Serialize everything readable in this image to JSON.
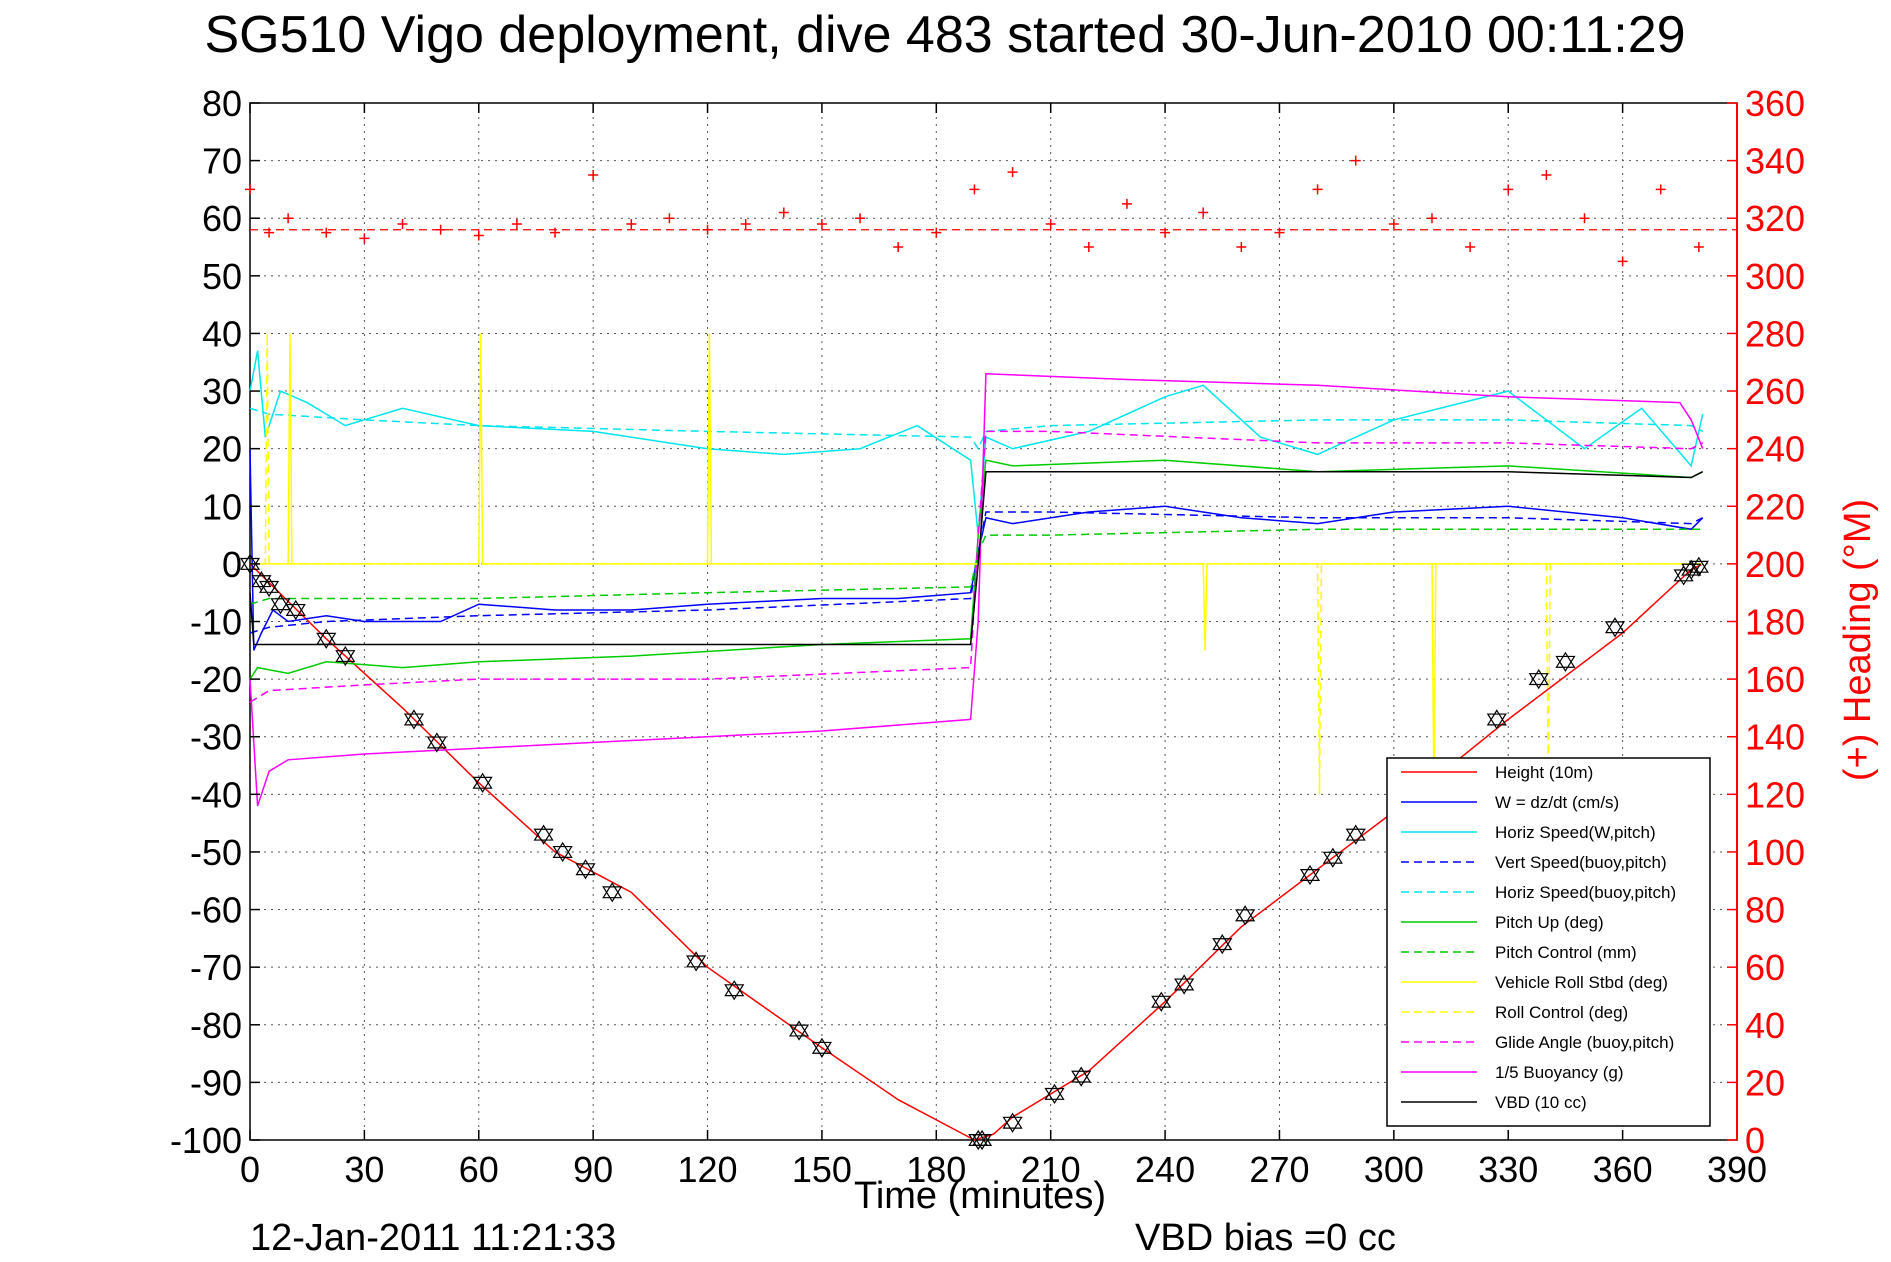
{
  "chart_data": {
    "type": "line",
    "title": "SG510 Vigo deployment, dive 483 started 30-Jun-2010 00:11:29",
    "xlabel": "Time (minutes)",
    "ylabel": "",
    "ylabel_right": "(+) Heading (°M)",
    "xlim": [
      0,
      390
    ],
    "ylim": [
      -100,
      80
    ],
    "ylim_right": [
      0,
      360
    ],
    "x_ticks": [
      "0",
      "30",
      "60",
      "90",
      "120",
      "150",
      "180",
      "210",
      "240",
      "270",
      "300",
      "330",
      "360",
      "390"
    ],
    "y_ticks": [
      "80",
      "70",
      "60",
      "50",
      "40",
      "30",
      "20",
      "10",
      "0",
      "-10",
      "-20",
      "-30",
      "-40",
      "-50",
      "-60",
      "-70",
      "-80",
      "-90",
      "-100"
    ],
    "y_ticks_right": [
      "360",
      "340",
      "320",
      "300",
      "280",
      "260",
      "240",
      "220",
      "200",
      "180",
      "160",
      "140",
      "120",
      "100",
      "80",
      "60",
      "40",
      "20",
      "0"
    ],
    "grid": true,
    "legend_position": "bottom-right",
    "series": [
      {
        "name": "Height (10m)",
        "color": "#ff0000",
        "style": "solid",
        "x": [
          0,
          20,
          40,
          60,
          80,
          100,
          120,
          150,
          170,
          190,
          195,
          200,
          220,
          240,
          260,
          280,
          300,
          330,
          360,
          378,
          381
        ],
        "y": [
          0,
          -13,
          -25,
          -38,
          -50,
          -57,
          -70,
          -84,
          -93,
          -100,
          -99,
          -96,
          -88,
          -76,
          -63,
          -53,
          -43,
          -27,
          -12,
          -1,
          0
        ]
      },
      {
        "name": "W = dz/dt (cm/s)",
        "color": "#0000ff",
        "style": "solid",
        "x": [
          0,
          1,
          3,
          6,
          10,
          20,
          30,
          50,
          60,
          80,
          100,
          120,
          150,
          170,
          189,
          191,
          193,
          200,
          220,
          240,
          260,
          280,
          300,
          330,
          360,
          378,
          381
        ],
        "y": [
          20,
          -15,
          -12,
          -8,
          -10,
          -9,
          -10,
          -10,
          -7,
          -8,
          -8,
          -7,
          -6,
          -6,
          -5,
          2,
          8,
          7,
          9,
          10,
          8,
          7,
          9,
          10,
          8,
          6,
          8
        ]
      },
      {
        "name": "Horiz Speed(W,pitch)",
        "color": "#00e5ee",
        "style": "solid",
        "x": [
          0,
          2,
          4,
          8,
          15,
          25,
          40,
          60,
          90,
          120,
          140,
          160,
          175,
          189,
          191,
          193,
          200,
          220,
          240,
          250,
          265,
          280,
          300,
          330,
          350,
          365,
          378,
          381
        ],
        "y": [
          30,
          37,
          22,
          30,
          28,
          24,
          27,
          24,
          23,
          20,
          19,
          20,
          24,
          18,
          5,
          22,
          20,
          23,
          29,
          31,
          22,
          19,
          25,
          30,
          20,
          27,
          17,
          26
        ]
      },
      {
        "name": "Vert Speed(buoy,pitch)",
        "color": "#0000ff",
        "style": "dashed",
        "x": [
          0,
          5,
          20,
          60,
          120,
          189,
          191,
          193,
          210,
          280,
          330,
          378,
          381
        ],
        "y": [
          -12,
          -11,
          -10,
          -9,
          -8,
          -6,
          2,
          9,
          9,
          8,
          8,
          7,
          8
        ]
      },
      {
        "name": "Horiz Speed(buoy,pitch)",
        "color": "#00e5ee",
        "style": "dashed",
        "x": [
          0,
          5,
          30,
          60,
          120,
          189,
          191,
          193,
          210,
          280,
          330,
          378,
          381
        ],
        "y": [
          27,
          26,
          25,
          24,
          23,
          22,
          20,
          23,
          24,
          25,
          25,
          24,
          23
        ]
      },
      {
        "name": "Pitch Up (deg)",
        "color": "#00cc00",
        "style": "solid",
        "x": [
          0,
          2,
          10,
          20,
          40,
          60,
          100,
          150,
          189,
          191,
          193,
          200,
          240,
          280,
          330,
          378,
          381
        ],
        "y": [
          -20,
          -18,
          -19,
          -17,
          -18,
          -17,
          -16,
          -14,
          -13,
          5,
          18,
          17,
          18,
          16,
          17,
          15,
          16
        ]
      },
      {
        "name": "Pitch Control (mm)",
        "color": "#00cc00",
        "style": "dashed",
        "x": [
          0,
          5,
          30,
          60,
          120,
          189,
          191,
          193,
          210,
          280,
          330,
          378,
          381
        ],
        "y": [
          -7,
          -6,
          -6,
          -6,
          -5,
          -4,
          2,
          5,
          5,
          6,
          6,
          6,
          6
        ]
      },
      {
        "name": "Vehicle Roll Stbd (deg)",
        "color": "#ffff00",
        "style": "solid",
        "x": [
          0,
          10,
          10.5,
          11,
          60,
          60.5,
          61,
          120,
          120.5,
          121,
          189,
          193,
          250,
          250.5,
          251,
          310,
          310.5,
          311,
          378,
          381
        ],
        "y": [
          0,
          0,
          40,
          0,
          0,
          40,
          0,
          0,
          40,
          0,
          0,
          0,
          0,
          -15,
          0,
          0,
          -40,
          0,
          0,
          0
        ]
      },
      {
        "name": "Roll Control (deg)",
        "color": "#ffff00",
        "style": "dashed",
        "x": [
          0,
          4,
          4.5,
          5,
          120,
          189,
          193,
          280,
          280.5,
          281,
          340,
          340.5,
          341,
          378,
          381
        ],
        "y": [
          0,
          0,
          40,
          0,
          0,
          0,
          0,
          0,
          -40,
          0,
          0,
          -40,
          0,
          0,
          0
        ]
      },
      {
        "name": "Glide Angle (buoy,pitch)",
        "color": "#ff00ff",
        "style": "dashed",
        "x": [
          0,
          5,
          30,
          60,
          120,
          189,
          191,
          193,
          210,
          280,
          330,
          378,
          381
        ],
        "y": [
          -24,
          -22,
          -21,
          -20,
          -20,
          -18,
          5,
          23,
          23,
          21,
          21,
          20,
          21
        ]
      },
      {
        "name": "1/5 Buoyancy (g)",
        "color": "#ff00ff",
        "style": "solid",
        "x": [
          0,
          2,
          5,
          10,
          30,
          60,
          120,
          150,
          189,
          191,
          193,
          230,
          280,
          330,
          375,
          378,
          381
        ],
        "y": [
          -20,
          -42,
          -36,
          -34,
          -33,
          -32,
          -30,
          -29,
          -27,
          -10,
          33,
          32,
          31,
          29,
          28,
          25,
          20
        ]
      },
      {
        "name": "VBD (10 cc)",
        "color": "#000000",
        "style": "solid",
        "x": [
          0,
          1,
          3,
          60,
          120,
          189,
          191,
          193,
          210,
          280,
          330,
          378,
          381
        ],
        "y": [
          -5,
          -14,
          -14,
          -14,
          -14,
          -14,
          0,
          16,
          16,
          16,
          16,
          15,
          16
        ]
      },
      {
        "name": "",
        "color": "#ff0000",
        "style": "heading-markers",
        "axis": "right",
        "x": [
          0,
          5,
          10,
          20,
          30,
          40,
          50,
          60,
          70,
          80,
          90,
          100,
          110,
          120,
          130,
          140,
          150,
          160,
          170,
          180,
          190,
          200,
          210,
          220,
          230,
          240,
          250,
          260,
          270,
          280,
          290,
          300,
          310,
          320,
          330,
          340,
          350,
          360,
          370,
          380
        ],
        "y": [
          330,
          315,
          320,
          315,
          313,
          318,
          316,
          314,
          318,
          315,
          335,
          318,
          320,
          316,
          318,
          322,
          318,
          320,
          310,
          315,
          330,
          336,
          318,
          310,
          325,
          315,
          322,
          310,
          315,
          330,
          340,
          318,
          320,
          310,
          330,
          335,
          320,
          305,
          330,
          310
        ]
      }
    ],
    "heading_reference": 316,
    "dive_markers": {
      "x": [
        0,
        3,
        5,
        8,
        12,
        20,
        25,
        43,
        49,
        61,
        77,
        82,
        88,
        95,
        117,
        127,
        144,
        150,
        191,
        192,
        200,
        211,
        218,
        239,
        245,
        255,
        261,
        278,
        284,
        290,
        327,
        338,
        345,
        358,
        376,
        378,
        380
      ],
      "y": [
        0,
        -3,
        -4,
        -7,
        -8,
        -13,
        -16,
        -27,
        -31,
        -38,
        -47,
        -50,
        -53,
        -57,
        -69,
        -74,
        -81,
        -84,
        -100,
        -100,
        -97,
        -92,
        -89,
        -76,
        -73,
        -66,
        -61,
        -54,
        -51,
        -47,
        -27,
        -20,
        -17,
        -11,
        -2,
        -1,
        -0.5
      ]
    }
  },
  "footer": {
    "timestamp": "12-Jan-2011 11:21:33",
    "vbd_bias": "VBD bias =0 cc"
  }
}
